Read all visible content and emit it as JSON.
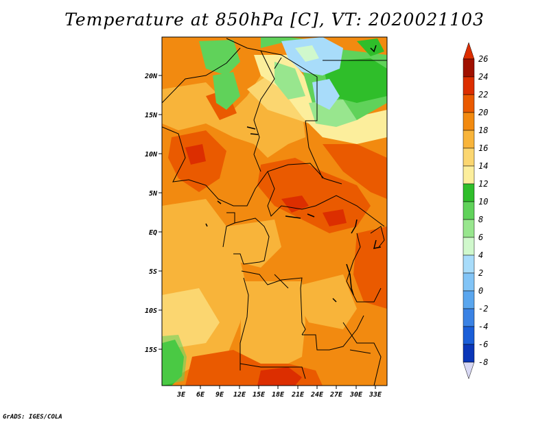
{
  "title": "Temperature at 850hPa [C], VT: 2020021103",
  "credit": "GrADS: IGES/COLA",
  "map": {
    "lon_range": [
      0,
      34.5
    ],
    "lat_range": [
      -20,
      24
    ],
    "lon_ticks": [
      "3E",
      "6E",
      "9E",
      "12E",
      "15E",
      "18E",
      "21E",
      "24E",
      "27E",
      "30E",
      "33E"
    ],
    "lat_ticks": [
      "20N",
      "15N",
      "10N",
      "5N",
      "EQ",
      "5S",
      "10S",
      "15S"
    ]
  },
  "colorbar": {
    "labels": [
      "26",
      "24",
      "22",
      "20",
      "18",
      "16",
      "14",
      "12",
      "10",
      "8",
      "6",
      "4",
      "2",
      "0",
      "-2",
      "-4",
      "-6",
      "-8"
    ],
    "colors": [
      "#a01000",
      "#dc2e00",
      "#ea5a00",
      "#f28a10",
      "#f8b43a",
      "#fbd670",
      "#fcee9c",
      "#2fbe2a",
      "#60d25a",
      "#98e68e",
      "#d0f8cc",
      "#a8dcfa",
      "#82c4f6",
      "#5aa6ee",
      "#3a82e4",
      "#1a5ed8",
      "#0a36b8",
      "#061a7a"
    ],
    "top_color": "#dc2e00",
    "bottom_color": "#d8d8f4"
  }
}
